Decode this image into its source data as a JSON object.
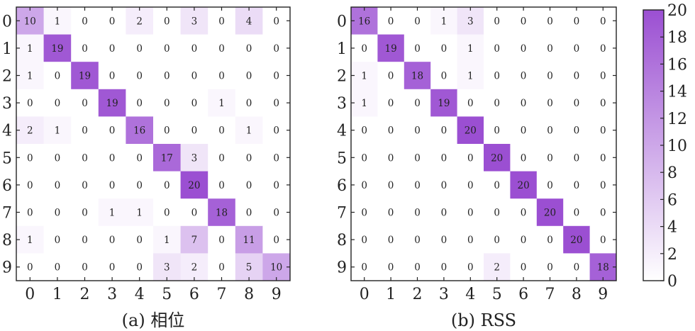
{
  "chart_data": [
    {
      "type": "heatmap",
      "title": "(a) 相位",
      "x_categories": [
        "0",
        "1",
        "2",
        "3",
        "4",
        "5",
        "6",
        "7",
        "8",
        "9"
      ],
      "y_categories": [
        "0",
        "1",
        "2",
        "3",
        "4",
        "5",
        "6",
        "7",
        "8",
        "9"
      ],
      "matrix": [
        [
          10,
          1,
          0,
          0,
          2,
          0,
          3,
          0,
          4,
          0
        ],
        [
          1,
          19,
          0,
          0,
          0,
          0,
          0,
          0,
          0,
          0
        ],
        [
          1,
          0,
          19,
          0,
          0,
          0,
          0,
          0,
          0,
          0
        ],
        [
          0,
          0,
          0,
          19,
          0,
          0,
          0,
          1,
          0,
          0
        ],
        [
          2,
          1,
          0,
          0,
          16,
          0,
          0,
          0,
          1,
          0
        ],
        [
          0,
          0,
          0,
          0,
          0,
          17,
          3,
          0,
          0,
          0
        ],
        [
          0,
          0,
          0,
          0,
          0,
          0,
          20,
          0,
          0,
          0
        ],
        [
          0,
          0,
          0,
          1,
          1,
          0,
          0,
          18,
          0,
          0
        ],
        [
          1,
          0,
          0,
          0,
          0,
          1,
          7,
          0,
          11,
          0
        ],
        [
          0,
          0,
          0,
          0,
          0,
          3,
          2,
          0,
          5,
          10
        ]
      ]
    },
    {
      "type": "heatmap",
      "title": "(b) RSS",
      "x_categories": [
        "0",
        "1",
        "2",
        "3",
        "4",
        "5",
        "6",
        "7",
        "8",
        "9"
      ],
      "y_categories": [
        "0",
        "1",
        "2",
        "3",
        "4",
        "5",
        "6",
        "7",
        "8",
        "9"
      ],
      "matrix": [
        [
          16,
          0,
          0,
          1,
          3,
          0,
          0,
          0,
          0,
          0
        ],
        [
          0,
          19,
          0,
          0,
          1,
          0,
          0,
          0,
          0,
          0
        ],
        [
          1,
          0,
          18,
          0,
          1,
          0,
          0,
          0,
          0,
          0
        ],
        [
          1,
          0,
          0,
          19,
          0,
          0,
          0,
          0,
          0,
          0
        ],
        [
          0,
          0,
          0,
          0,
          20,
          0,
          0,
          0,
          0,
          0
        ],
        [
          0,
          0,
          0,
          0,
          0,
          20,
          0,
          0,
          0,
          0
        ],
        [
          0,
          0,
          0,
          0,
          0,
          0,
          20,
          0,
          0,
          0
        ],
        [
          0,
          0,
          0,
          0,
          0,
          0,
          0,
          20,
          0,
          0
        ],
        [
          0,
          0,
          0,
          0,
          0,
          0,
          0,
          0,
          20,
          0
        ],
        [
          0,
          0,
          0,
          0,
          0,
          2,
          0,
          0,
          0,
          18
        ]
      ]
    }
  ],
  "colorbar": {
    "min": 0,
    "max": 20,
    "ticks": [
      0,
      2,
      4,
      6,
      8,
      10,
      12,
      14,
      16,
      18,
      20
    ],
    "color_low": "#ffffff",
    "color_high": "#9b4fd2"
  }
}
